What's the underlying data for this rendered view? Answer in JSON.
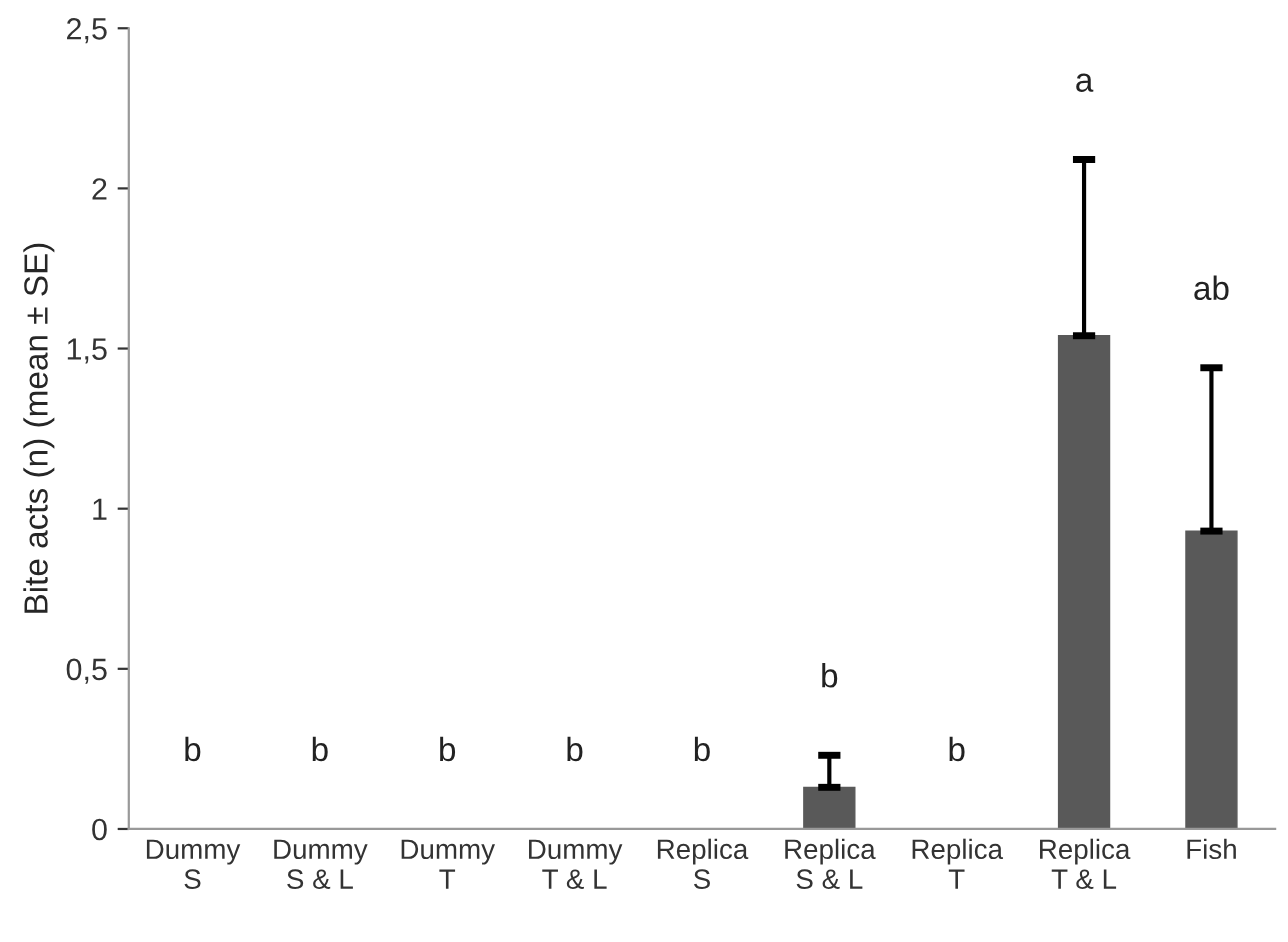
{
  "chart_data": {
    "type": "bar",
    "ylabel": "Bite acts (n) (mean ± SE)",
    "categories": [
      "Dummy\nS",
      "Dummy\nS & L",
      "Dummy\nT",
      "Dummy\nT & L",
      "Replica\nS",
      "Replica\nS & L",
      "Replica\nT",
      "Replica\nT & L",
      "Fish"
    ],
    "values": [
      0,
      0,
      0,
      0,
      0,
      0.13,
      0,
      1.54,
      0.93
    ],
    "errors": [
      null,
      null,
      null,
      null,
      null,
      [
        0.13,
        0.23
      ],
      null,
      [
        1.54,
        2.09
      ],
      [
        0.93,
        1.44
      ]
    ],
    "color": "#595959",
    "ylim": [
      0,
      2.5
    ],
    "yticks": [
      0,
      {
        "value": 0.5,
        "label": "0,5"
      },
      1,
      {
        "value": 1.5,
        "label": "1,5"
      },
      2,
      {
        "value": 2.5,
        "label": "2,5"
      }
    ],
    "grid": false,
    "legend": false,
    "annotations": [
      "b",
      "b",
      "b",
      "b",
      "b",
      "b",
      "b",
      "a",
      "ab"
    ]
  }
}
